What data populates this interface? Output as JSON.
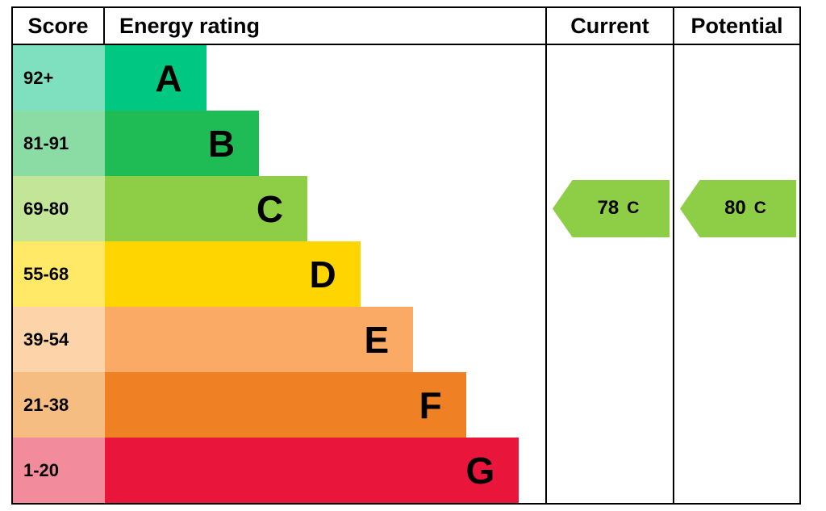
{
  "header": {
    "score": "Score",
    "rating": "Energy rating",
    "current": "Current",
    "potential": "Potential"
  },
  "bands": [
    {
      "score": "92+",
      "letter": "A",
      "bar_color": "#00c781",
      "score_color": "#7fe0c0",
      "width_pct": 23
    },
    {
      "score": "81-91",
      "letter": "B",
      "bar_color": "#1fbb55",
      "score_color": "#8adca4",
      "width_pct": 35
    },
    {
      "score": "69-80",
      "letter": "C",
      "bar_color": "#8dce46",
      "score_color": "#c2e597",
      "width_pct": 46
    },
    {
      "score": "55-68",
      "letter": "D",
      "bar_color": "#ffd500",
      "score_color": "#ffe967",
      "width_pct": 58
    },
    {
      "score": "39-54",
      "letter": "E",
      "bar_color": "#fbaa65",
      "score_color": "#fdd4a9",
      "width_pct": 70
    },
    {
      "score": "21-38",
      "letter": "F",
      "bar_color": "#ef8023",
      "score_color": "#f5bd81",
      "width_pct": 82
    },
    {
      "score": "1-20",
      "letter": "G",
      "bar_color": "#e9153b",
      "score_color": "#f28c9d",
      "width_pct": 94
    }
  ],
  "current": {
    "value": "78",
    "band": "C",
    "arrow_color": "#8dce46"
  },
  "potential": {
    "value": "80",
    "band": "C",
    "arrow_color": "#8dce46"
  },
  "chart_data": {
    "type": "bar",
    "title": "Energy rating (EPC)",
    "categories": [
      "A",
      "B",
      "C",
      "D",
      "E",
      "F",
      "G"
    ],
    "score_ranges": [
      "92+",
      "81-91",
      "69-80",
      "55-68",
      "39-54",
      "21-38",
      "1-20"
    ],
    "bar_lengths_pct": [
      23,
      35,
      46,
      58,
      70,
      82,
      94
    ],
    "columns": [
      "Score",
      "Energy rating",
      "Current",
      "Potential"
    ],
    "current_rating": {
      "value": 78,
      "band": "C"
    },
    "potential_rating": {
      "value": 80,
      "band": "C"
    },
    "band_colors": [
      "#00c781",
      "#1fbb55",
      "#8dce46",
      "#ffd500",
      "#fbaa65",
      "#ef8023",
      "#e9153b"
    ],
    "legend_position": "none",
    "grid": false
  }
}
